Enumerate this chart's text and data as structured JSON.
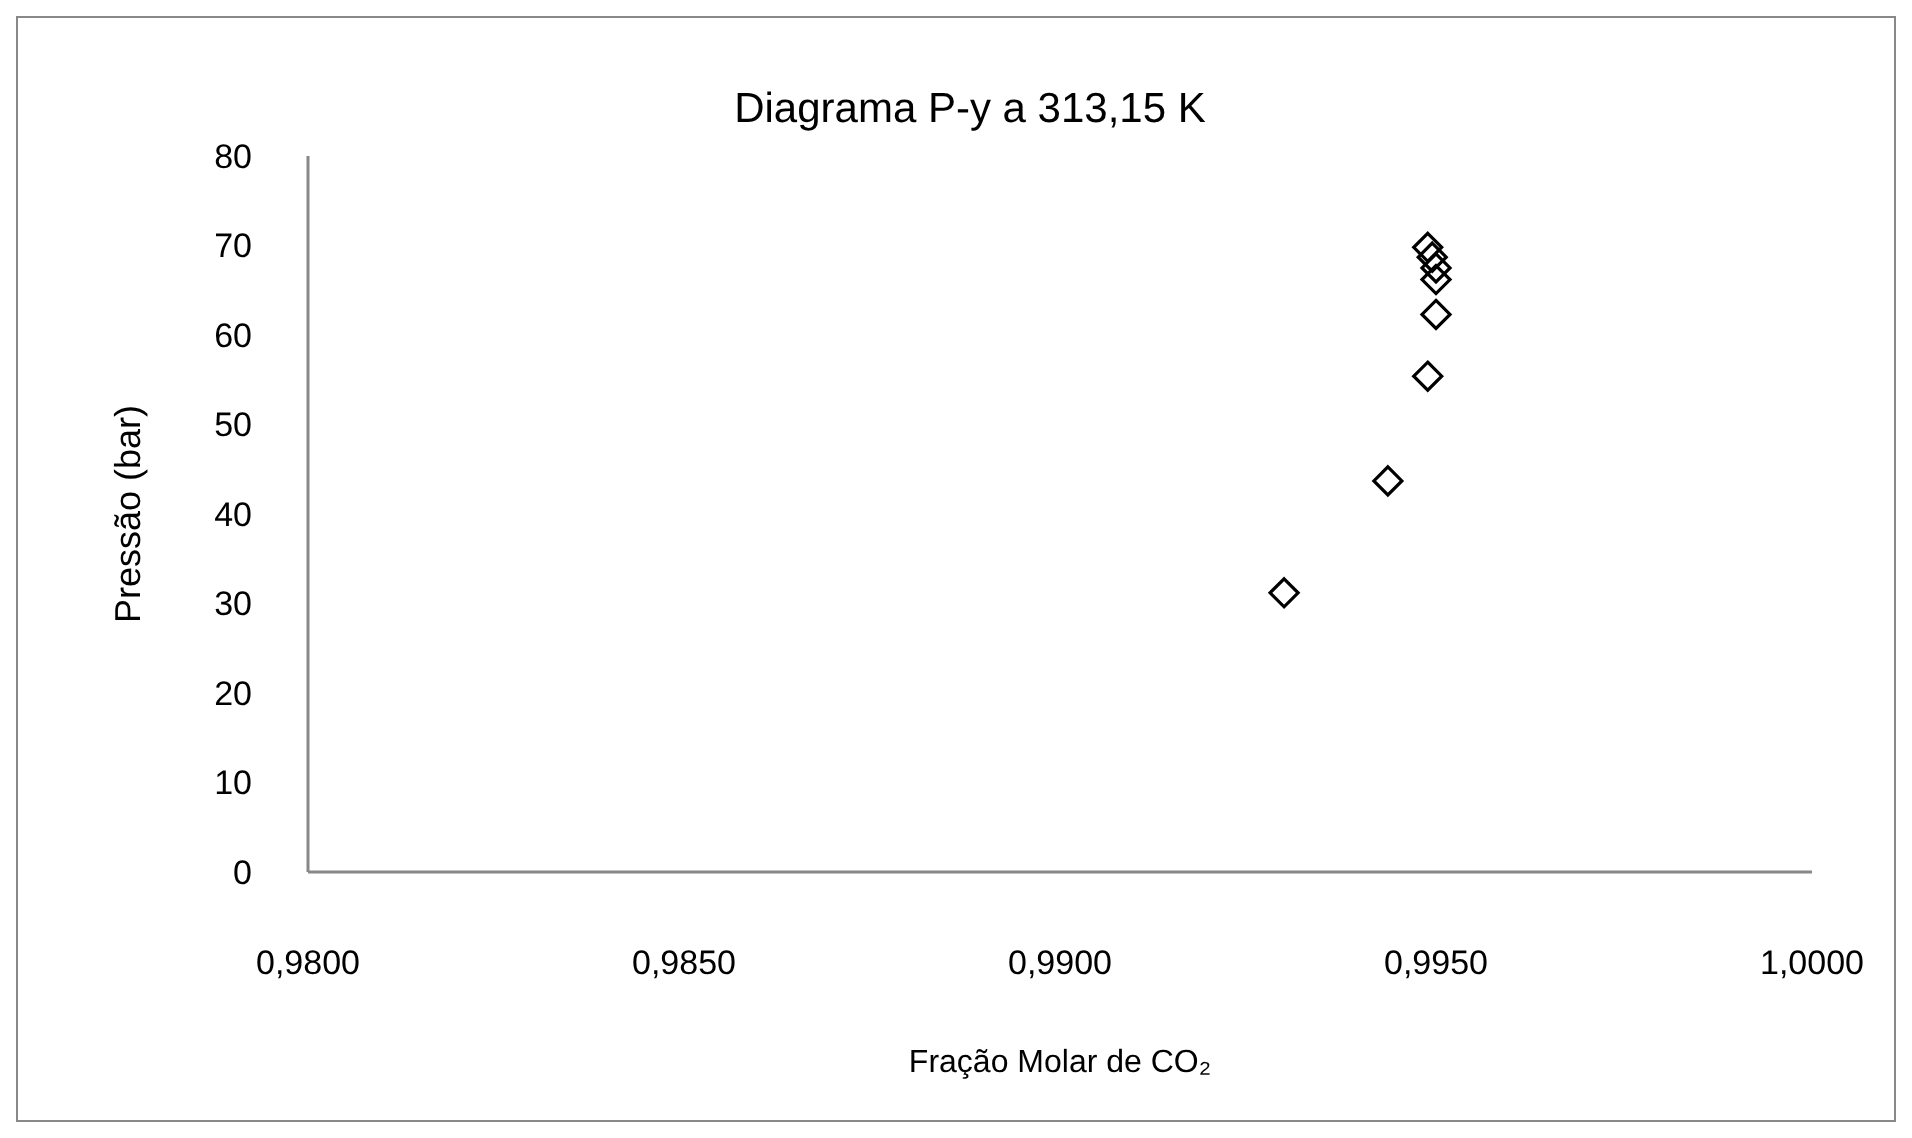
{
  "chart_data": {
    "type": "scatter",
    "title": "Diagrama P-y a 313,15 K",
    "xlabel": "Fração Molar de CO₂",
    "ylabel": "Pressão (bar)",
    "marker": "diamond",
    "grid": false,
    "x": [
      0.99298,
      0.99436,
      0.99489,
      0.995,
      0.995,
      0.99495,
      0.995,
      0.99489
    ],
    "series": [
      {
        "color": "#000000",
        "values": [
          31.2,
          43.7,
          55.4,
          62.3,
          66.2,
          68.7,
          67.5,
          69.8
        ]
      }
    ],
    "xlim": [
      0.98,
      1.0
    ],
    "xticks": [
      {
        "value": 0.98,
        "label": "0,9800"
      },
      {
        "value": 0.985,
        "label": "0,9850"
      },
      {
        "value": 0.99,
        "label": "0,9900"
      },
      {
        "value": 0.995,
        "label": "0,9950"
      },
      {
        "value": 1.0,
        "label": "1,0000"
      }
    ],
    "ylim": [
      0,
      80
    ],
    "yticks": [
      0,
      10,
      20,
      30,
      40,
      50,
      60,
      70,
      80
    ]
  }
}
